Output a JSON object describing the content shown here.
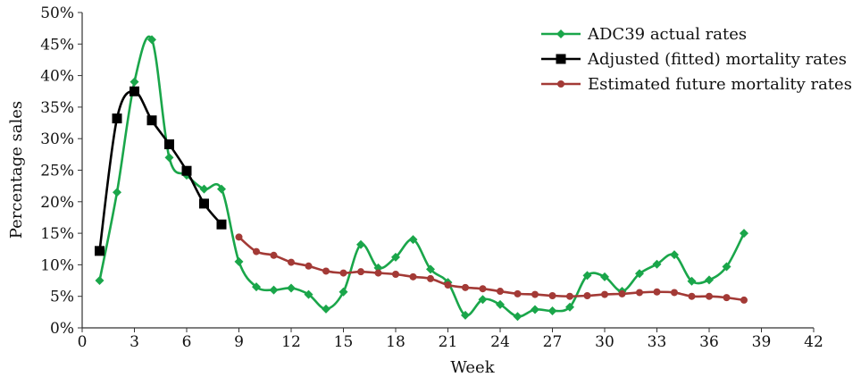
{
  "chart_data": {
    "type": "line",
    "title": "",
    "xlabel": "Week",
    "ylabel": "Percentage sales",
    "xlim": [
      0,
      42
    ],
    "ylim": [
      0,
      50
    ],
    "xticks": [
      0,
      3,
      6,
      9,
      12,
      15,
      18,
      21,
      24,
      27,
      30,
      33,
      36,
      39,
      42
    ],
    "xtick_labels": [
      "0",
      "3",
      "6",
      "9",
      "12",
      "15",
      "18",
      "21",
      "24",
      "27",
      "30",
      "33",
      "36",
      "39",
      "42"
    ],
    "yticks": [
      0,
      5,
      10,
      15,
      20,
      25,
      30,
      35,
      40,
      45,
      50
    ],
    "ytick_labels": [
      "0%",
      "5%",
      "10%",
      "15%",
      "20%",
      "25%",
      "30%",
      "35%",
      "40%",
      "45%",
      "50%"
    ],
    "grid": false,
    "legend_position": "top-right",
    "series": [
      {
        "name": "ADC39 actual rates",
        "color": "#1aa64a",
        "marker": "diamond",
        "x": [
          1,
          2,
          3,
          4,
          5,
          6,
          7,
          8,
          9,
          10,
          11,
          12,
          13,
          14,
          15,
          16,
          17,
          18,
          19,
          20,
          21,
          22,
          23,
          24,
          25,
          26,
          27,
          28,
          29,
          30,
          31,
          32,
          33,
          34,
          35,
          36,
          37,
          38
        ],
        "y": [
          7.5,
          21.5,
          39,
          45.7,
          27,
          24.2,
          22,
          22,
          10.5,
          6.5,
          6,
          6.3,
          5.3,
          3,
          5.7,
          13.2,
          9.5,
          11.2,
          14,
          9.3,
          7.2,
          2,
          4.5,
          3.7,
          1.8,
          2.9,
          2.7,
          3.3,
          8.3,
          8.1,
          5.8,
          8.6,
          10.1,
          11.6,
          7.4,
          7.6,
          9.7,
          15
        ]
      },
      {
        "name": "Adjusted (fitted) mortality rates",
        "color": "#000000",
        "marker": "square",
        "x": [
          1,
          2,
          3,
          4,
          5,
          6,
          7,
          8
        ],
        "y": [
          12.2,
          33.2,
          37.5,
          32.9,
          29.1,
          24.9,
          19.7,
          16.4
        ]
      },
      {
        "name": "Estimated future mortality rates",
        "color": "#a33a36",
        "marker": "circle",
        "x": [
          9,
          10,
          11,
          12,
          13,
          14,
          15,
          16,
          17,
          18,
          19,
          20,
          21,
          22,
          23,
          24,
          25,
          26,
          27,
          28,
          29,
          30,
          31,
          32,
          33,
          34,
          35,
          36,
          37,
          38
        ],
        "y": [
          14.4,
          12.1,
          11.5,
          10.4,
          9.8,
          9,
          8.7,
          8.9,
          8.7,
          8.5,
          8.1,
          7.8,
          6.8,
          6.4,
          6.2,
          5.8,
          5.4,
          5.3,
          5.1,
          5,
          5.1,
          5.3,
          5.4,
          5.6,
          5.7,
          5.6,
          5,
          5,
          4.8,
          4.4
        ]
      }
    ]
  }
}
